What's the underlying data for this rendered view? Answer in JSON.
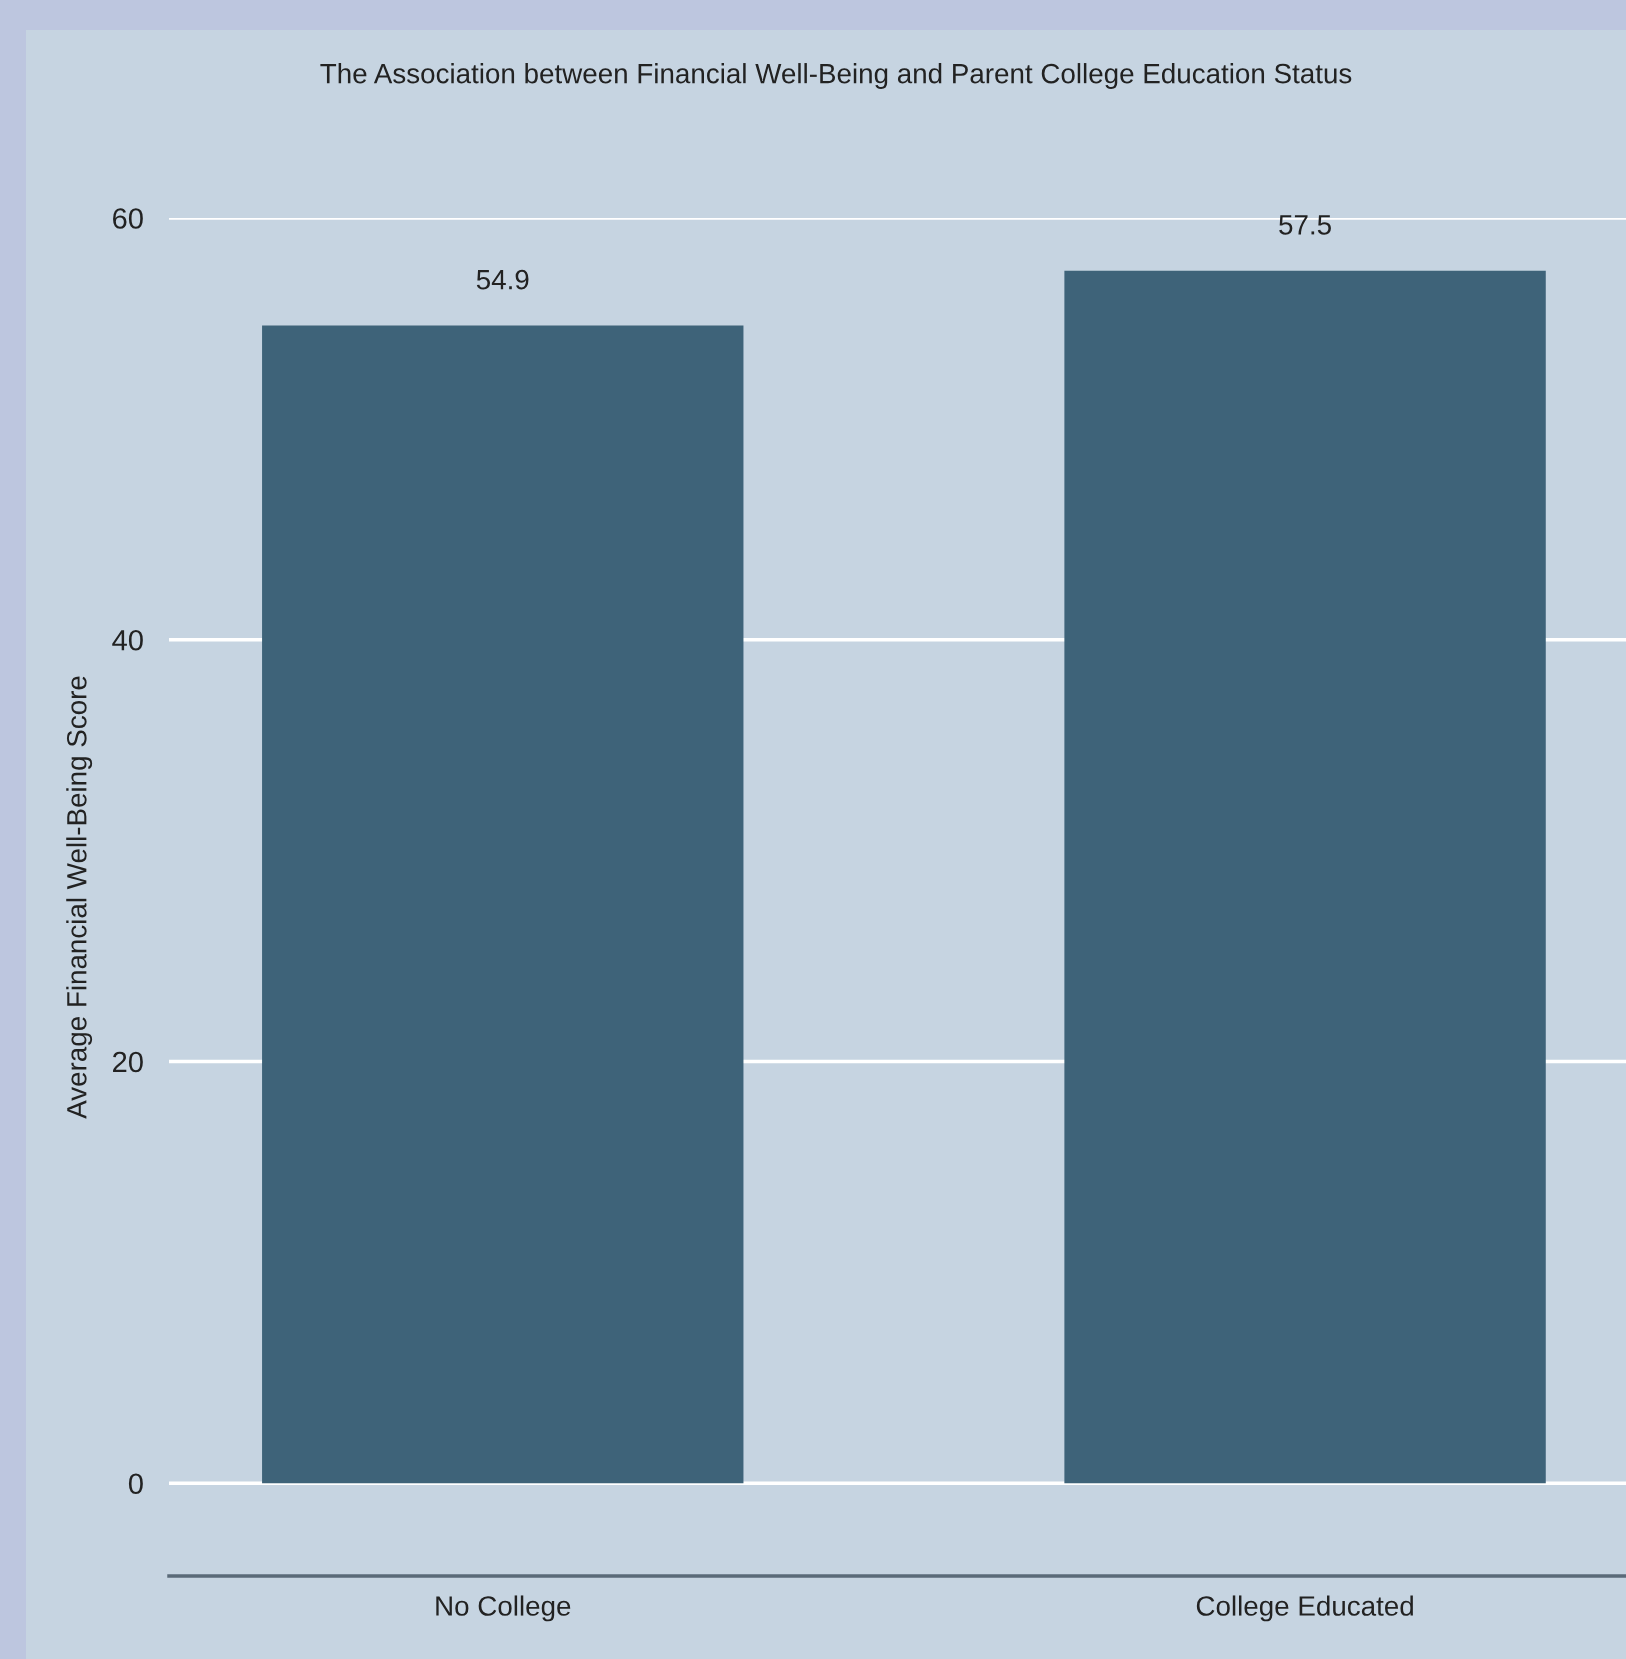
{
  "chart_data": {
    "type": "bar",
    "title": "The Association between Financial Well-Being and Parent College Education Status",
    "ylabel": "Average Financial Well-Being Score",
    "categories": [
      "No College",
      "College Educated"
    ],
    "values": [
      54.9,
      57.5
    ],
    "color": "#3e6379",
    "ylim": [
      -4.4,
      60
    ],
    "yticks": [
      0,
      20,
      40,
      60
    ],
    "grid": "y",
    "data_labels": true
  }
}
